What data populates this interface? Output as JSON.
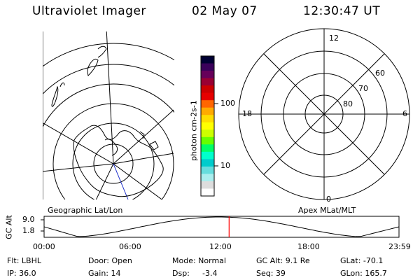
{
  "header": {
    "instrument": "Ultraviolet Imager",
    "date": "02 May 07",
    "time": "12:30:47 UT"
  },
  "left_panel": {
    "label": "Geographic Lat/Lon"
  },
  "right_panel": {
    "label": "Apex MLat/MLT",
    "mlt_labels": [
      "12",
      "18",
      "6",
      "0"
    ],
    "mlat_labels": [
      "60",
      "70",
      "80"
    ]
  },
  "colorbar": {
    "unit_label": "photon cm-2s-1",
    "ticks": [
      "100",
      "10"
    ],
    "colors": [
      "#000033",
      "#3a005a",
      "#66005a",
      "#990033",
      "#cc0000",
      "#e60000",
      "#ff6600",
      "#ffaa00",
      "#ffdd00",
      "#ffff00",
      "#ccff00",
      "#66ff00",
      "#00ff66",
      "#00ffcc",
      "#00cccc",
      "#66dddd",
      "#aaeeee",
      "#dddddd",
      "#ffffff"
    ]
  },
  "altitude_plot": {
    "ylabel": "GC Alt",
    "ytick_high": "9.0",
    "ytick_low": "1.8",
    "xticks": [
      "00:00",
      "06:00",
      "12:00",
      "18:00",
      "23:59"
    ],
    "current_time_hours": 12.51,
    "marker_color": "#ff0000"
  },
  "info": {
    "flt": "Flt: LBHL",
    "door": "Door: Open",
    "mode": "Mode: Normal",
    "gc_alt": "GC Alt: 9.1 Re",
    "glat": "GLat: -70.1",
    "ip": "IP: 36.0",
    "gain": "Gain: 14",
    "dsp_label": "Dsp:",
    "dsp_value": "-3.4",
    "seq": "Seq: 39",
    "glon": "GLon: 165.7"
  }
}
